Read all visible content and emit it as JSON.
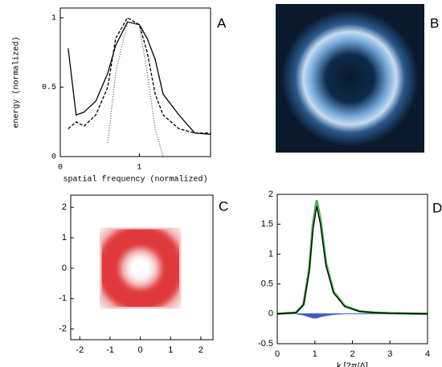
{
  "chart_data": [
    {
      "type": "line",
      "label": "A",
      "x_label": "spatial frequency (normalized)",
      "y_label": "energy (normalized)",
      "x": [
        0.1,
        0.2,
        0.3,
        0.45,
        0.6,
        0.7,
        0.85,
        1.0,
        1.1,
        1.2,
        1.3,
        1.5,
        1.7,
        1.9
      ],
      "series": [
        {
          "color": "#000000",
          "dash": "solid",
          "values": [
            0.78,
            0.3,
            0.32,
            0.4,
            0.6,
            0.8,
            0.97,
            0.95,
            0.85,
            0.7,
            0.45,
            0.3,
            0.17,
            0.16
          ]
        },
        {
          "color": "#000000",
          "dash": "dashed",
          "values": [
            0.2,
            0.25,
            0.22,
            0.3,
            0.5,
            0.85,
            1.0,
            0.95,
            0.75,
            0.45,
            0.3,
            0.2,
            0.17,
            0.17
          ]
        },
        {
          "color": "#555555",
          "dash": "dotted",
          "values": [
            null,
            null,
            null,
            null,
            0.1,
            0.6,
            0.97,
            0.95,
            0.6,
            0.2,
            0,
            null,
            null,
            null
          ]
        }
      ],
      "xlim": [
        0,
        1.9
      ],
      "ylim": [
        0,
        1.07
      ],
      "xticks": [
        0,
        1
      ],
      "yticks": [
        0,
        0.5,
        1
      ]
    },
    {
      "type": "image",
      "label": "B"
    },
    {
      "type": "density",
      "label": "C",
      "xlim": [
        -2.3,
        2.4
      ],
      "ylim": [
        -2.35,
        2.4
      ],
      "xticks": [
        -2,
        -1,
        0,
        1,
        2
      ],
      "yticks": [
        -2,
        -1,
        0,
        1,
        2
      ]
    },
    {
      "type": "line",
      "label": "D",
      "x_label": "k [2π/Λ]",
      "x": [
        0,
        0.5,
        0.7,
        0.85,
        0.95,
        1.05,
        1.15,
        1.3,
        1.5,
        1.8,
        2.2,
        2.6,
        3,
        4
      ],
      "series": [
        {
          "color": "#3b5fc0",
          "dash": "solid",
          "fill": true,
          "values": [
            0,
            0,
            -0.02,
            -0.05,
            -0.07,
            -0.07,
            -0.05,
            -0.03,
            -0.01,
            0,
            0,
            0,
            0,
            0
          ]
        },
        {
          "color": "#4caf50",
          "dash": "solid",
          "values": [
            0,
            0.02,
            0.16,
            0.75,
            1.5,
            1.9,
            1.58,
            0.84,
            0.37,
            0.13,
            0.04,
            0.02,
            0.01,
            0
          ]
        },
        {
          "color": "#000000",
          "dash": "solid",
          "values": [
            0,
            0.02,
            0.15,
            0.7,
            1.4,
            1.8,
            1.5,
            0.8,
            0.35,
            0.12,
            0.04,
            0.02,
            0.01,
            0
          ]
        }
      ],
      "xlim": [
        0,
        4
      ],
      "ylim": [
        -0.5,
        2
      ],
      "xticks": [
        0,
        1,
        2,
        3,
        4
      ],
      "yticks": [
        -0.5,
        0,
        0.5,
        1,
        1.5,
        2
      ]
    }
  ]
}
